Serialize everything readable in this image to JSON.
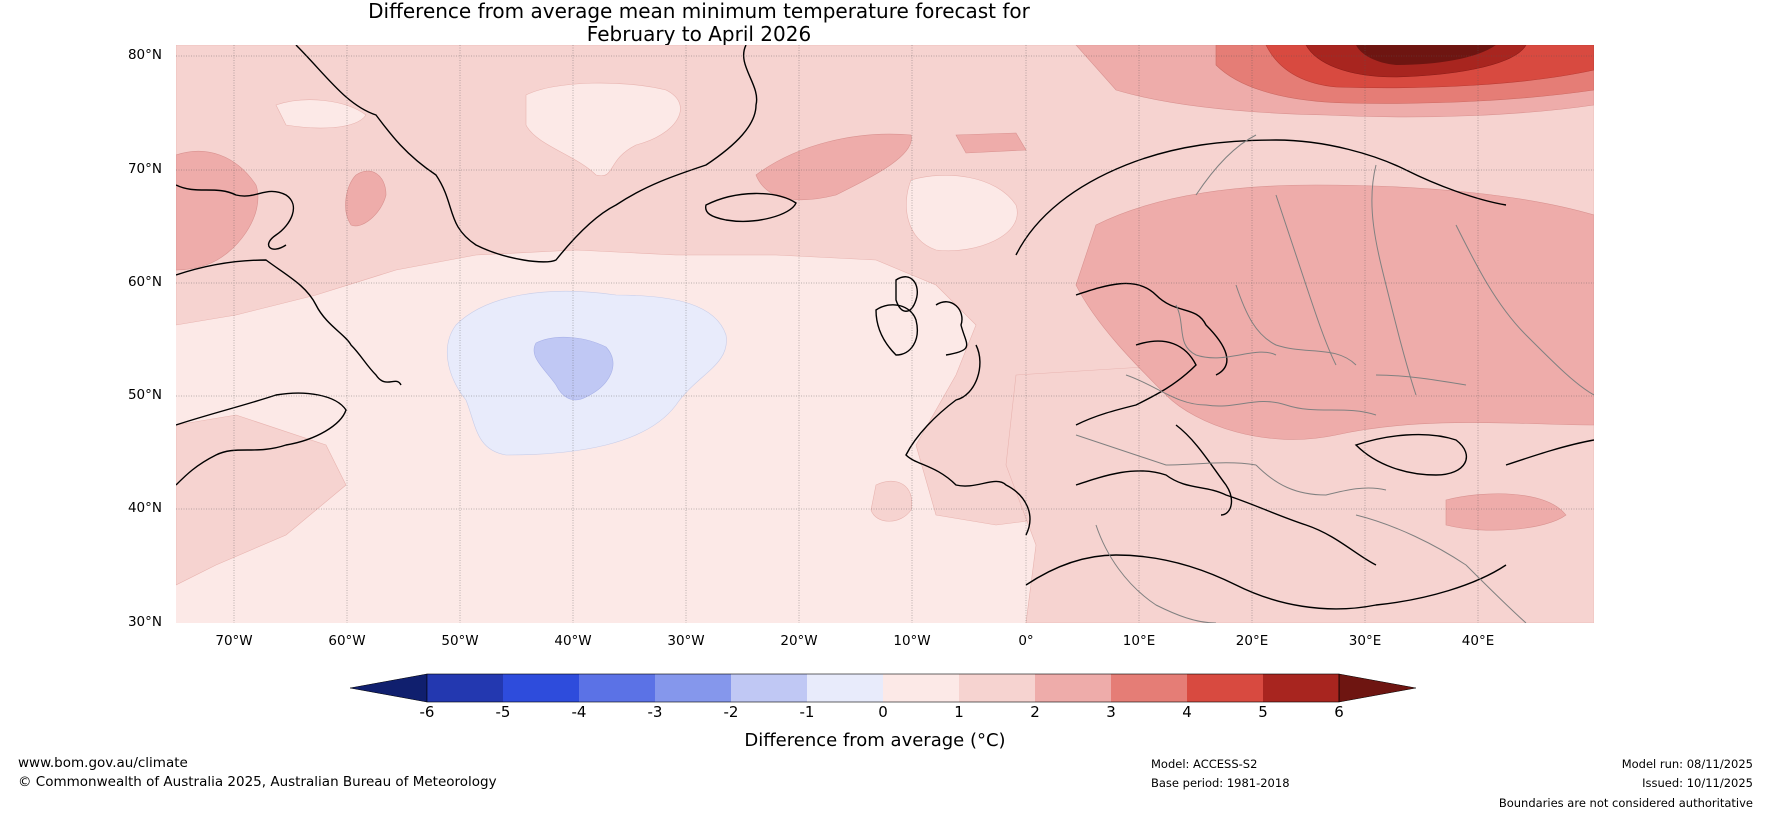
{
  "title": {
    "line1": "Difference from average mean minimum temperature forecast for",
    "line2": "February to April 2026"
  },
  "map": {
    "lat_labels": [
      "80°N",
      "70°N",
      "60°N",
      "50°N",
      "40°N",
      "30°N"
    ],
    "lon_labels": [
      "70°W",
      "60°W",
      "50°W",
      "40°W",
      "30°W",
      "20°W",
      "10°W",
      "0°",
      "10°E",
      "20°E",
      "30°E",
      "40°E"
    ]
  },
  "colorbar": {
    "ticks": [
      "-6",
      "-5",
      "-4",
      "-3",
      "-2",
      "-1",
      "0",
      "1",
      "2",
      "3",
      "4",
      "5",
      "6"
    ],
    "colors": [
      "#101f6e",
      "#2338b0",
      "#2e4cdc",
      "#5b72e6",
      "#8597ec",
      "#c0c8f4",
      "#e8ebfb",
      "#fce9e7",
      "#f6d3d0",
      "#eeacaa",
      "#e57d76",
      "#d84a40",
      "#a8251f",
      "#6e1511"
    ],
    "label": "Difference from average (°C)"
  },
  "footer": {
    "website": "www.bom.gov.au/climate",
    "copyright": "© Commonwealth of Australia 2025, Australian Bureau of Meteorology",
    "model": "Model: ACCESS-S2",
    "base_period": "Base period: 1981-2018",
    "model_run": "Model run: 08/11/2025",
    "issued": "Issued: 10/11/2025",
    "disclaimer": "Boundaries are not considered authoritative"
  }
}
